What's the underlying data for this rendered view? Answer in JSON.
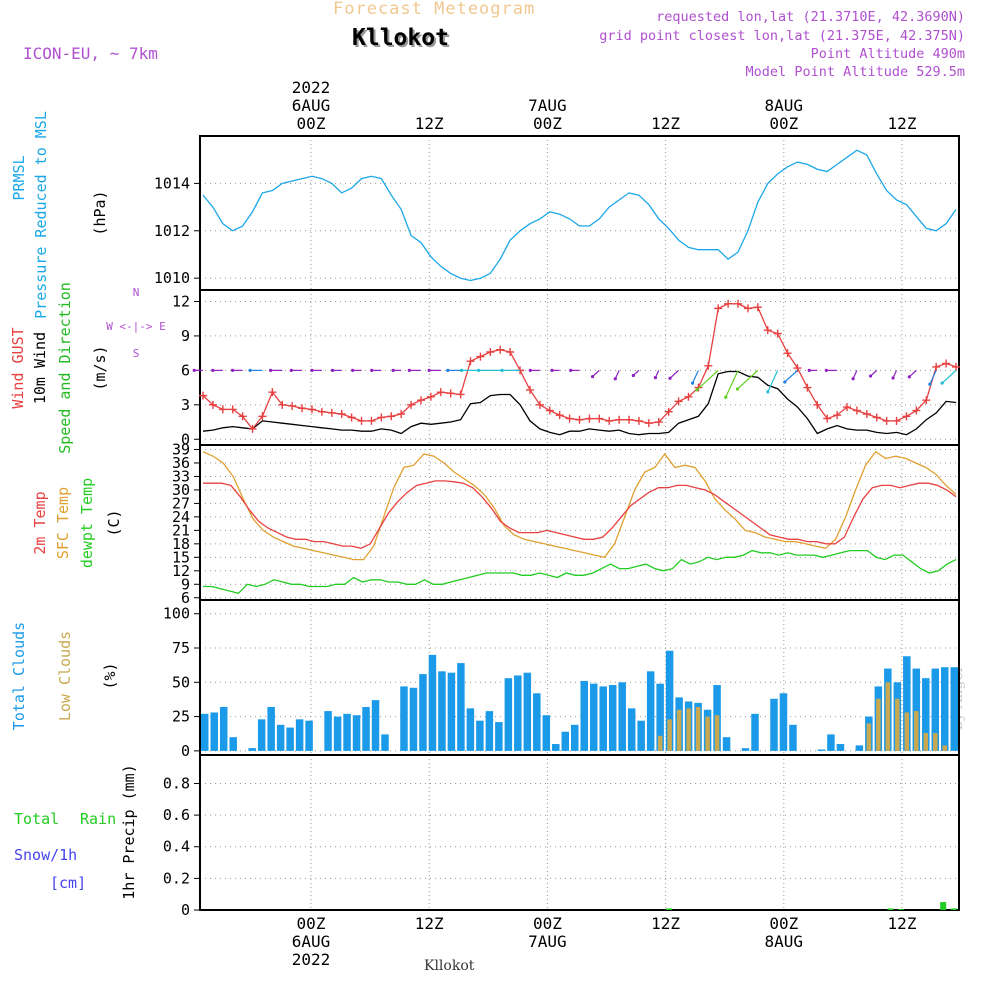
{
  "header": {
    "title": "Forecast Meteogram",
    "location": "Kllokot",
    "model": "ICON-EU, ~ 7km",
    "requested": "requested lon,lat (21.3710E, 42.3690N)",
    "closest": "grid point closest lon,lat (21.375E, 42.375N)",
    "point_altitude": "Point Altitude 490m",
    "model_altitude": "Model Point Altitude 529.5m",
    "footer_location": "Kllokot",
    "watermark": "by Angel"
  },
  "colors": {
    "pressure": "#1aa7e8",
    "gust": "#e84040",
    "wind": "#000000",
    "wind_label_green": "#22bb22",
    "temp2m": "#e84040",
    "sfc": "#e0a030",
    "dewpt": "#22cc22",
    "total_clouds": "#1a9ae8",
    "low_clouds": "#c8a850",
    "rain": "#22cc22",
    "snow": "#4444ee",
    "purple": "#b050d0",
    "title": "#f0c890"
  },
  "time_axis": {
    "top": [
      {
        "hour": 6,
        "lines": [
          "2022",
          "6AUG",
          "00Z"
        ]
      },
      {
        "hour": 18,
        "lines": [
          "12Z"
        ]
      },
      {
        "hour": 30,
        "lines": [
          "7AUG",
          "00Z"
        ]
      },
      {
        "hour": 42,
        "lines": [
          "12Z"
        ]
      },
      {
        "hour": 54,
        "lines": [
          "8AUG",
          "00Z"
        ]
      },
      {
        "hour": 66,
        "lines": [
          "12Z"
        ]
      }
    ],
    "bottom": [
      {
        "hour": 6,
        "lines": [
          "00Z",
          "6AUG",
          "2022"
        ]
      },
      {
        "hour": 18,
        "lines": [
          "12Z"
        ]
      },
      {
        "hour": 30,
        "lines": [
          "00Z",
          "7AUG"
        ]
      },
      {
        "hour": 42,
        "lines": [
          "12Z"
        ]
      },
      {
        "hour": 54,
        "lines": [
          "00Z",
          "8AUG"
        ]
      },
      {
        "hour": 66,
        "lines": [
          "12Z"
        ]
      }
    ]
  },
  "chart_data": [
    {
      "type": "line",
      "panel": "pressure",
      "ylabels": [
        "PRMSL",
        "Pressure Reduced to MSL"
      ],
      "unit": "(hPa)",
      "ylim": [
        1009.5,
        1016
      ],
      "yticks": [
        1010,
        1012,
        1014
      ],
      "series": [
        {
          "name": "PRMSL",
          "values": [
            1013.5,
            1013.0,
            1012.3,
            1012.0,
            1012.2,
            1012.8,
            1013.6,
            1013.7,
            1014.0,
            1014.1,
            1014.2,
            1014.3,
            1014.2,
            1014.0,
            1013.6,
            1013.8,
            1014.2,
            1014.3,
            1014.2,
            1013.5,
            1012.9,
            1011.8,
            1011.5,
            1010.9,
            1010.5,
            1010.2,
            1010.0,
            1009.9,
            1010.0,
            1010.2,
            1010.8,
            1011.6,
            1012.0,
            1012.3,
            1012.5,
            1012.8,
            1012.7,
            1012.5,
            1012.2,
            1012.2,
            1012.5,
            1013.0,
            1013.3,
            1013.6,
            1013.5,
            1013.1,
            1012.5,
            1012.1,
            1011.6,
            1011.3,
            1011.2,
            1011.2,
            1011.2,
            1010.8,
            1011.1,
            1012.0,
            1013.2,
            1014.0,
            1014.4,
            1014.7,
            1014.9,
            1014.8,
            1014.6,
            1014.5,
            1014.8,
            1015.1,
            1015.4,
            1015.2,
            1014.4,
            1013.7,
            1013.3,
            1013.1,
            1012.6,
            1012.1,
            1012.0,
            1012.3,
            1012.9
          ]
        }
      ]
    },
    {
      "type": "line",
      "panel": "wind",
      "ylabels": [
        "Wind GUST",
        "10m Wind",
        "Speed and Direction"
      ],
      "unit": "(m/s)",
      "compass": [
        "N",
        "S",
        "W <-|-> E"
      ],
      "ylim": [
        -0.5,
        13
      ],
      "yticks": [
        0,
        3,
        6,
        9,
        12
      ],
      "series": [
        {
          "name": "Wind GUST",
          "values": [
            3.8,
            3.0,
            2.6,
            2.6,
            2.0,
            0.9,
            2.0,
            4.1,
            3.0,
            2.9,
            2.7,
            2.6,
            2.4,
            2.3,
            2.2,
            1.9,
            1.6,
            1.6,
            1.9,
            2.0,
            2.2,
            3.0,
            3.4,
            3.7,
            4.1,
            4.0,
            3.9,
            6.8,
            7.2,
            7.6,
            7.8,
            7.6,
            6.0,
            4.3,
            3.0,
            2.5,
            2.1,
            1.8,
            1.7,
            1.8,
            1.8,
            1.6,
            1.7,
            1.7,
            1.6,
            1.4,
            1.5,
            2.4,
            3.3,
            3.7,
            4.5,
            6.4,
            11.4,
            11.8,
            11.8,
            11.4,
            11.5,
            9.5,
            9.2,
            7.5,
            6.2,
            4.5,
            3.0,
            1.8,
            2.1,
            2.8,
            2.5,
            2.2,
            1.9,
            1.6,
            1.6,
            2.0,
            2.5,
            3.4,
            6.3,
            6.6,
            6.3
          ]
        },
        {
          "name": "10m Wind",
          "values": [
            0.7,
            0.8,
            1.0,
            1.1,
            1.0,
            0.9,
            1.6,
            1.5,
            1.4,
            1.3,
            1.2,
            1.1,
            1.0,
            0.9,
            0.8,
            0.8,
            0.7,
            0.7,
            0.9,
            0.8,
            0.5,
            1.1,
            1.4,
            1.3,
            1.4,
            1.5,
            1.7,
            3.1,
            3.2,
            3.8,
            3.9,
            3.9,
            3.0,
            1.6,
            0.9,
            0.6,
            0.4,
            0.7,
            0.7,
            0.9,
            0.8,
            0.7,
            0.8,
            0.5,
            0.4,
            0.5,
            0.5,
            0.6,
            1.4,
            1.7,
            2.0,
            3.1,
            5.7,
            5.9,
            5.9,
            5.5,
            5.4,
            4.7,
            4.4,
            3.5,
            2.8,
            1.8,
            0.5,
            0.9,
            1.2,
            0.9,
            0.8,
            0.8,
            0.6,
            0.5,
            0.6,
            0.4,
            0.9,
            1.7,
            2.3,
            3.3,
            3.2
          ]
        }
      ]
    },
    {
      "type": "line",
      "panel": "temperature",
      "ylabels": [
        "2m Temp",
        "SFC Temp",
        "dewpt Temp"
      ],
      "unit": "(C)",
      "ylim": [
        5.5,
        40
      ],
      "yticks": [
        6,
        9,
        12,
        15,
        18,
        21,
        24,
        27,
        30,
        33,
        36,
        39
      ],
      "series": [
        {
          "name": "2m Temp",
          "values": [
            31.5,
            31.5,
            31.5,
            31.0,
            28.5,
            25.5,
            23.0,
            21.5,
            20.5,
            19.5,
            19.0,
            19.0,
            18.5,
            18.5,
            18.0,
            17.5,
            17.5,
            17.0,
            18.0,
            21.5,
            25.0,
            27.5,
            29.5,
            31.0,
            31.5,
            32.0,
            32.0,
            31.8,
            31.5,
            30.5,
            28.5,
            26.0,
            23.0,
            21.5,
            20.5,
            20.5,
            20.5,
            21.0,
            20.5,
            20.0,
            19.5,
            19.0,
            19.0,
            19.5,
            21.5,
            24.0,
            26.5,
            28.0,
            29.5,
            30.5,
            30.5,
            31.0,
            31.0,
            30.5,
            30.0,
            29.0,
            27.5,
            26.0,
            24.5,
            23.0,
            21.5,
            20.0,
            19.5,
            19.0,
            19.0,
            18.5,
            18.5,
            18.0,
            18.0,
            19.5,
            24.0,
            28.0,
            30.5,
            31.0,
            31.0,
            30.5,
            31.0,
            31.5,
            31.5,
            31.0,
            30.0,
            28.5
          ]
        },
        {
          "name": "SFC Temp",
          "values": [
            38.5,
            37.5,
            36.0,
            33.0,
            28.0,
            23.5,
            21.0,
            19.5,
            18.5,
            17.5,
            17.0,
            16.5,
            16.0,
            15.5,
            15.0,
            14.5,
            14.5,
            17.5,
            24.0,
            30.5,
            35.0,
            35.5,
            38.0,
            37.5,
            36.0,
            34.0,
            32.5,
            31.0,
            29.0,
            26.0,
            22.0,
            20.0,
            19.0,
            18.5,
            18.0,
            17.5,
            17.0,
            16.5,
            16.0,
            15.5,
            15.0,
            18.0,
            24.0,
            30.0,
            34.0,
            35.0,
            38.0,
            35.0,
            35.5,
            35.0,
            32.0,
            28.0,
            25.5,
            23.5,
            21.0,
            20.5,
            19.5,
            19.0,
            18.5,
            18.5,
            18.0,
            17.5,
            17.0,
            19.0,
            24.0,
            30.0,
            35.5,
            38.5,
            37.0,
            37.5,
            37.0,
            36.0,
            35.0,
            33.5,
            31.0,
            29.0
          ]
        },
        {
          "name": "dewpt Temp",
          "values": [
            8.5,
            8.5,
            8.0,
            7.5,
            7.0,
            9.0,
            8.5,
            9.0,
            10.0,
            9.5,
            9.0,
            9.0,
            8.5,
            8.5,
            8.5,
            9.0,
            9.0,
            10.5,
            9.5,
            10.0,
            10.0,
            9.5,
            9.5,
            9.0,
            9.0,
            10.0,
            9.0,
            9.0,
            9.5,
            10.0,
            10.5,
            11.0,
            11.5,
            11.5,
            11.5,
            11.5,
            11.0,
            11.0,
            11.5,
            11.0,
            10.5,
            11.5,
            11.0,
            11.0,
            11.5,
            12.5,
            13.5,
            12.5,
            12.5,
            13.0,
            13.5,
            12.5,
            12.0,
            12.5,
            14.5,
            13.5,
            14.0,
            15.0,
            14.5,
            15.0,
            15.0,
            15.5,
            16.5,
            16.0,
            16.0,
            15.5,
            16.0,
            15.5,
            15.5,
            15.5,
            15.0,
            15.5,
            16.0,
            16.5,
            16.5,
            16.5,
            15.0,
            14.5,
            15.5,
            15.5,
            14.0,
            12.5,
            11.5,
            12.0,
            13.5,
            14.5
          ]
        }
      ]
    },
    {
      "type": "bar",
      "panel": "clouds",
      "ylabels": [
        "Total Clouds",
        "Low Clouds"
      ],
      "unit": "(%)",
      "ylim": [
        -3,
        110
      ],
      "yticks": [
        0,
        25,
        50,
        75,
        100
      ],
      "series": [
        {
          "name": "Total Clouds",
          "values": [
            27,
            28,
            32,
            10,
            0,
            2,
            23,
            32,
            19,
            17,
            23,
            22,
            0,
            29,
            25,
            27,
            26,
            32,
            37,
            12,
            0,
            47,
            46,
            56,
            70,
            58,
            57,
            64,
            31,
            22,
            29,
            21,
            53,
            55,
            57,
            42,
            26,
            5,
            14,
            19,
            51,
            49,
            47,
            48,
            50,
            31,
            22,
            58,
            49,
            73,
            39,
            36,
            35,
            30,
            48,
            10,
            0,
            2,
            27,
            0,
            38,
            42,
            19,
            0,
            0,
            1,
            12,
            5,
            0,
            4,
            25,
            47,
            60,
            50,
            69,
            60,
            53,
            60,
            61,
            61
          ]
        },
        {
          "name": "Low Clouds",
          "values": [
            0,
            0,
            0,
            0,
            0,
            0,
            0,
            0,
            0,
            0,
            0,
            0,
            0,
            0,
            0,
            0,
            0,
            0,
            0,
            0,
            0,
            0,
            0,
            0,
            0,
            0,
            0,
            0,
            0,
            0,
            0,
            0,
            0,
            0,
            0,
            0,
            0,
            0,
            0,
            0,
            0,
            0,
            0,
            0,
            0,
            0,
            0,
            0,
            11,
            23,
            30,
            31,
            32,
            25,
            26,
            0,
            0,
            0,
            0,
            0,
            0,
            0,
            0,
            0,
            0,
            0,
            0,
            0,
            0,
            0,
            20,
            38,
            50,
            38,
            28,
            29,
            13,
            13,
            4,
            0
          ]
        }
      ]
    },
    {
      "type": "bar",
      "panel": "precipitation",
      "ylabels": [
        "Total",
        "Rain",
        "Snow/1h",
        "[cm]"
      ],
      "unit": "1hr Precip (mm)",
      "ylim": [
        0,
        0.98
      ],
      "yticks": [
        0,
        0.2,
        0.4,
        0.6,
        0.8
      ],
      "series": [
        {
          "name": "Total Rain",
          "points": [
            {
              "hour": 44.5,
              "value": 0.01
            },
            {
              "hour": 65.5,
              "value": 0.01
            },
            {
              "hour": 66.5,
              "value": 0.005
            },
            {
              "hour": 70.5,
              "value": 0.05
            },
            {
              "hour": 71.5,
              "value": 0.01
            }
          ]
        }
      ]
    }
  ]
}
